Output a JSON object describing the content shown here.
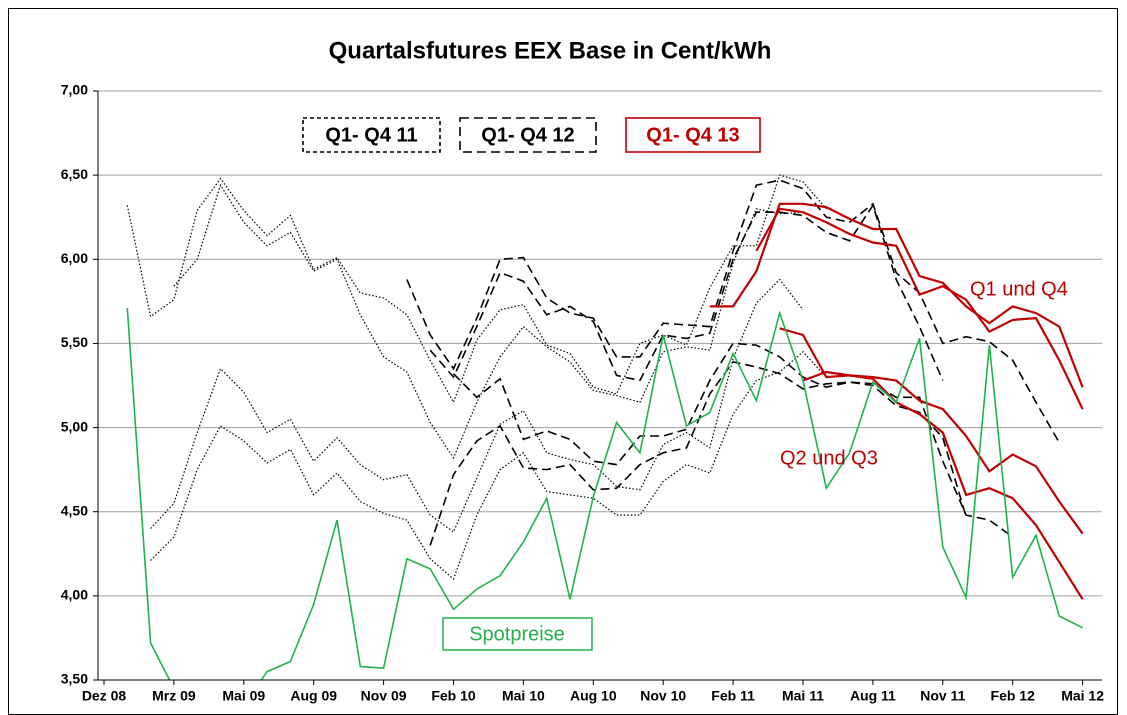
{
  "chart_data": {
    "type": "line",
    "title": "Quartalsfutures EEX Base in Cent/kWh",
    "categories": [
      "Dez 08",
      null,
      null,
      "Mrz 09",
      null,
      null,
      "Mai 09",
      null,
      null,
      "Aug 09",
      null,
      null,
      "Nov 09",
      null,
      null,
      "Feb 10",
      null,
      null,
      "Mai 10",
      null,
      null,
      "Aug 10",
      null,
      null,
      "Nov 10",
      null,
      null,
      "Feb 11",
      null,
      null,
      "Mai 11",
      null,
      null,
      "Aug 11",
      null,
      null,
      "Nov 11",
      null,
      null,
      "Feb 12",
      null,
      null,
      "Mai 12"
    ],
    "ylim": [
      3.5,
      7.0
    ],
    "yticks": [
      {
        "value": 3.5,
        "label": "3,50"
      },
      {
        "value": 4.0,
        "label": "4,00"
      },
      {
        "value": 4.5,
        "label": "4,50"
      },
      {
        "value": 5.0,
        "label": "5,00"
      },
      {
        "value": 5.5,
        "label": "5,50"
      },
      {
        "value": 6.0,
        "label": "6,00"
      },
      {
        "value": 6.5,
        "label": "6,50"
      },
      {
        "value": 7.0,
        "label": "7,00"
      }
    ],
    "grid": true,
    "series": [
      {
        "name": "Q1- Q4 11",
        "color": "#000000",
        "dash": "dotted",
        "lines": [
          [
            null,
            6.32,
            5.66,
            5.76,
            6.29,
            6.48,
            6.29,
            6.14,
            6.26,
            5.94,
            6.01,
            5.8,
            5.77,
            5.67,
            5.4,
            5.15,
            5.52,
            5.7,
            5.73,
            5.49,
            5.44,
            5.24,
            5.2,
            5.5,
            5.55,
            5.49,
            5.83,
            6.08,
            6.08,
            6.5,
            6.46,
            6.3,
            null,
            null,
            null,
            null,
            null,
            null,
            null,
            null,
            null,
            null,
            null
          ],
          [
            null,
            null,
            null,
            5.84,
            6.0,
            6.44,
            6.22,
            6.08,
            6.16,
            5.93,
            6.0,
            5.67,
            5.42,
            5.33,
            5.03,
            4.82,
            5.15,
            5.42,
            5.6,
            5.48,
            5.39,
            5.22,
            5.19,
            5.15,
            5.45,
            5.48,
            5.46,
            5.98,
            6.3,
            6.27,
            6.28,
            null,
            null,
            null,
            null,
            null,
            null,
            null,
            null,
            null,
            null,
            null,
            null
          ],
          [
            null,
            null,
            4.4,
            4.55,
            4.97,
            5.35,
            5.21,
            4.97,
            5.05,
            4.8,
            4.94,
            4.78,
            4.69,
            4.72,
            4.48,
            4.38,
            4.7,
            5.02,
            5.1,
            4.85,
            4.81,
            4.78,
            4.65,
            4.63,
            4.9,
            4.97,
            4.88,
            5.41,
            5.74,
            5.88,
            5.7,
            null,
            null,
            null,
            null,
            null,
            null,
            null,
            null,
            null,
            null,
            null,
            null
          ],
          [
            null,
            null,
            4.21,
            4.35,
            4.75,
            5.01,
            4.92,
            4.79,
            4.87,
            4.6,
            4.73,
            4.56,
            4.49,
            4.45,
            4.22,
            4.1,
            4.48,
            4.75,
            4.85,
            4.62,
            4.6,
            4.58,
            4.48,
            4.48,
            4.68,
            4.78,
            4.73,
            5.08,
            5.28,
            5.33,
            5.45,
            5.3,
            null,
            null,
            null,
            null,
            null,
            null,
            null,
            null,
            null,
            null,
            null
          ]
        ]
      },
      {
        "name": "Q1- Q4 12",
        "color": "#000000",
        "dash": "dashed",
        "lines": [
          [
            null,
            null,
            null,
            null,
            null,
            null,
            null,
            null,
            null,
            null,
            null,
            null,
            null,
            5.88,
            5.55,
            5.35,
            5.65,
            6.0,
            6.01,
            5.77,
            5.68,
            5.65,
            5.42,
            5.42,
            5.62,
            5.61,
            5.6,
            6.05,
            6.44,
            6.47,
            6.42,
            6.25,
            6.22,
            6.33,
            5.92,
            5.8,
            5.5,
            5.54,
            5.51,
            5.4,
            5.15,
            4.91,
            null
          ],
          [
            null,
            null,
            null,
            null,
            null,
            null,
            null,
            null,
            null,
            null,
            null,
            null,
            null,
            null,
            5.46,
            5.3,
            5.6,
            5.92,
            5.87,
            5.67,
            5.72,
            5.63,
            5.31,
            5.28,
            5.55,
            5.53,
            5.56,
            6.0,
            6.28,
            6.28,
            6.26,
            6.16,
            6.11,
            6.32,
            5.88,
            5.6,
            5.28,
            null,
            null,
            null,
            null,
            null,
            null
          ],
          [
            null,
            null,
            null,
            null,
            null,
            null,
            null,
            null,
            null,
            null,
            null,
            null,
            null,
            null,
            null,
            5.32,
            5.18,
            5.29,
            4.93,
            4.98,
            4.93,
            4.8,
            4.78,
            4.95,
            4.95,
            4.99,
            5.28,
            5.5,
            5.49,
            5.42,
            5.3,
            5.24,
            5.27,
            5.26,
            5.18,
            5.18,
            4.8,
            4.48,
            4.45,
            4.35,
            null,
            null,
            null
          ],
          [
            null,
            null,
            null,
            null,
            null,
            null,
            null,
            null,
            null,
            null,
            null,
            null,
            null,
            null,
            4.3,
            4.72,
            4.92,
            5.01,
            4.76,
            4.75,
            4.78,
            4.63,
            4.64,
            4.78,
            4.85,
            4.88,
            5.2,
            5.39,
            5.36,
            5.32,
            5.23,
            5.26,
            5.27,
            5.25,
            5.13,
            5.09,
            4.94,
            4.47,
            null,
            null,
            null,
            null,
            null
          ]
        ]
      },
      {
        "name": "Q1- Q4 13",
        "color": "#c00000",
        "dash": "solid",
        "lines": [
          [
            null,
            null,
            null,
            null,
            null,
            null,
            null,
            null,
            null,
            null,
            null,
            null,
            null,
            null,
            null,
            null,
            null,
            null,
            null,
            null,
            null,
            null,
            null,
            null,
            null,
            null,
            5.72,
            5.72,
            5.93,
            6.33,
            6.33,
            6.31,
            6.24,
            6.18,
            6.18,
            5.9,
            5.86,
            5.72,
            5.62,
            5.72,
            5.68,
            5.6,
            5.24
          ],
          [
            null,
            null,
            null,
            null,
            null,
            null,
            null,
            null,
            null,
            null,
            null,
            null,
            null,
            null,
            null,
            null,
            null,
            null,
            null,
            null,
            null,
            null,
            null,
            null,
            null,
            null,
            null,
            null,
            6.05,
            6.3,
            6.28,
            6.22,
            6.15,
            6.1,
            6.08,
            5.79,
            5.84,
            5.76,
            5.57,
            5.64,
            5.65,
            5.4,
            5.11
          ],
          [
            null,
            null,
            null,
            null,
            null,
            null,
            null,
            null,
            null,
            null,
            null,
            null,
            null,
            null,
            null,
            null,
            null,
            null,
            null,
            null,
            null,
            null,
            null,
            null,
            null,
            null,
            null,
            null,
            null,
            5.59,
            5.55,
            5.3,
            5.31,
            5.3,
            5.28,
            5.16,
            5.11,
            4.95,
            4.74,
            4.84,
            4.77,
            4.56,
            4.37
          ],
          [
            null,
            null,
            null,
            null,
            null,
            null,
            null,
            null,
            null,
            null,
            null,
            null,
            null,
            null,
            null,
            null,
            null,
            null,
            null,
            null,
            null,
            null,
            null,
            null,
            null,
            null,
            null,
            null,
            null,
            null,
            5.28,
            5.33,
            5.31,
            5.29,
            5.15,
            5.08,
            4.97,
            4.6,
            4.64,
            4.58,
            4.42,
            4.2,
            3.98
          ]
        ]
      },
      {
        "name": "Spotpreise",
        "color": "#22b24c",
        "dash": "solid",
        "lines": [
          [
            null,
            5.71,
            3.72,
            3.45,
            3.3,
            3.25,
            3.35,
            3.55,
            3.61,
            3.95,
            4.45,
            3.58,
            3.57,
            4.22,
            4.16,
            3.92,
            4.04,
            4.12,
            4.32,
            4.58,
            3.98,
            4.59,
            5.03,
            4.85,
            5.55,
            5.01,
            5.09,
            5.44,
            5.16,
            5.68,
            5.28,
            4.64,
            4.85,
            5.27,
            5.15,
            5.53,
            4.29,
            3.99,
            5.49,
            4.11,
            4.36,
            3.88,
            3.81
          ]
        ]
      }
    ],
    "annotations": [
      "Q1 und Q4",
      "Q2 und Q3"
    ]
  }
}
